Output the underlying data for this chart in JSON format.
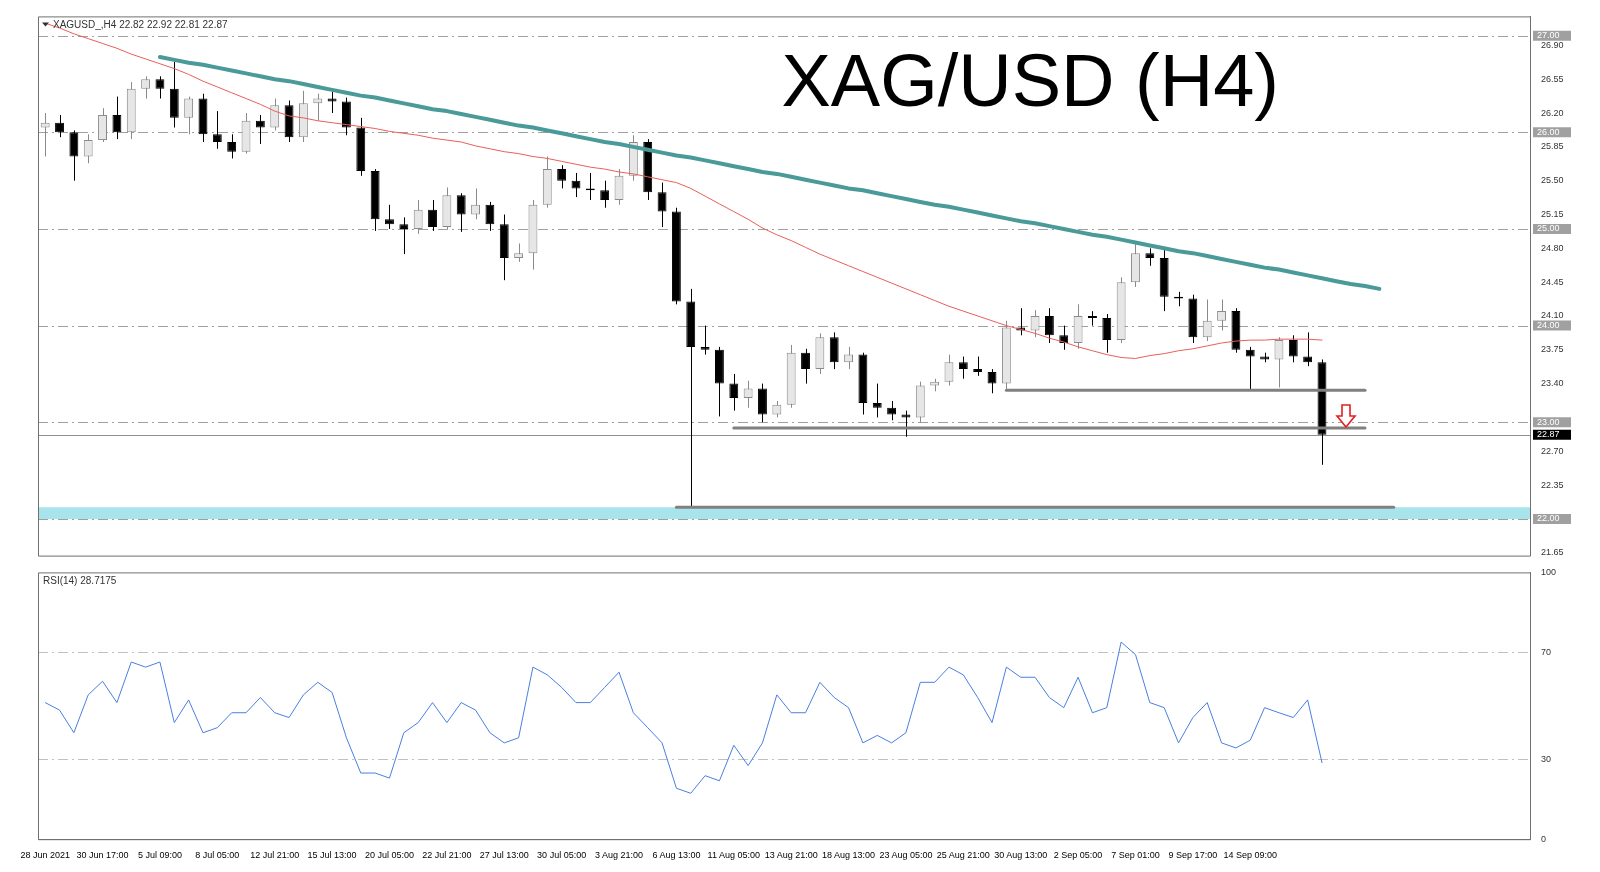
{
  "chart_data": [
    {
      "type": "candlestick",
      "title": "XAG/USD (H4)",
      "subtitle": "XAGUSD_,H4 22.82 22.92 22.81 22.87",
      "categories": [
        null,
        null,
        null,
        null,
        null,
        null,
        null,
        null,
        null,
        null,
        null,
        null,
        null,
        null,
        null,
        null,
        null,
        null,
        null,
        null,
        null,
        null,
        null,
        null,
        null,
        null,
        null,
        null,
        null,
        null,
        null,
        null,
        null,
        null,
        null,
        null,
        null,
        null,
        null,
        null,
        null,
        null,
        null,
        null,
        null,
        null,
        null,
        null,
        null,
        null,
        null,
        null,
        null,
        null,
        null,
        null,
        null,
        null,
        null,
        null,
        null,
        null,
        null,
        null,
        null,
        null,
        null,
        null,
        null,
        null,
        null,
        null,
        null,
        null,
        null,
        null,
        null,
        null,
        null,
        null,
        null,
        null,
        null,
        null,
        null,
        null,
        null,
        null,
        null,
        null,
        null,
        null,
        null,
        null,
        null,
        null,
        null,
        null,
        null,
        null,
        null,
        null,
        null,
        null
      ],
      "ohlc": [
        [
          26.05,
          26.2,
          25.75,
          26.1
        ],
        [
          26.1,
          26.18,
          25.95,
          26.0
        ],
        [
          26.0,
          26.02,
          25.5,
          25.75
        ],
        [
          25.75,
          25.98,
          25.68,
          25.92
        ],
        [
          25.92,
          26.25,
          25.9,
          26.18
        ],
        [
          26.18,
          26.37,
          25.93,
          26.0
        ],
        [
          26.0,
          26.52,
          25.93,
          26.45
        ],
        [
          26.45,
          26.58,
          26.35,
          26.55
        ],
        [
          26.55,
          26.58,
          26.35,
          26.45
        ],
        [
          26.45,
          26.73,
          26.05,
          26.15
        ],
        [
          26.15,
          26.37,
          25.98,
          26.35
        ],
        [
          26.35,
          26.4,
          25.9,
          25.98
        ],
        [
          25.98,
          26.22,
          25.83,
          25.9
        ],
        [
          25.9,
          25.98,
          25.73,
          25.8
        ],
        [
          25.8,
          26.2,
          25.78,
          26.12
        ],
        [
          26.12,
          26.18,
          25.88,
          26.05
        ],
        [
          26.05,
          26.35,
          26.02,
          26.28
        ],
        [
          26.28,
          26.33,
          25.9,
          25.95
        ],
        [
          25.95,
          26.43,
          25.9,
          26.3
        ],
        [
          26.3,
          26.4,
          26.12,
          26.35
        ],
        [
          26.35,
          26.42,
          26.2,
          26.32
        ],
        [
          26.32,
          26.36,
          25.97,
          26.05
        ],
        [
          26.05,
          26.15,
          25.55,
          25.6
        ],
        [
          25.6,
          25.62,
          24.98,
          25.1
        ],
        [
          25.1,
          25.25,
          25.0,
          25.05
        ],
        [
          25.05,
          25.12,
          24.74,
          25.0
        ],
        [
          25.0,
          25.3,
          24.95,
          25.2
        ],
        [
          25.2,
          25.3,
          24.98,
          25.02
        ],
        [
          25.02,
          25.43,
          25.0,
          25.35
        ],
        [
          25.35,
          25.37,
          24.97,
          25.15
        ],
        [
          25.15,
          25.42,
          25.1,
          25.25
        ],
        [
          25.25,
          25.28,
          24.98,
          25.05
        ],
        [
          25.05,
          25.15,
          24.47,
          24.7
        ],
        [
          24.7,
          24.85,
          24.66,
          24.75
        ],
        [
          24.75,
          25.3,
          24.58,
          25.25
        ],
        [
          25.25,
          25.75,
          25.22,
          25.62
        ],
        [
          25.62,
          25.66,
          25.42,
          25.5
        ],
        [
          25.5,
          25.58,
          25.33,
          25.42
        ],
        [
          25.42,
          25.58,
          25.3,
          25.4
        ],
        [
          25.4,
          25.5,
          25.22,
          25.3
        ],
        [
          25.3,
          25.62,
          25.25,
          25.55
        ],
        [
          25.55,
          25.97,
          25.5,
          25.9
        ],
        [
          25.9,
          25.93,
          25.3,
          25.38
        ],
        [
          25.38,
          25.48,
          25.02,
          25.18
        ],
        [
          25.18,
          25.22,
          24.22,
          24.25
        ],
        [
          24.25,
          24.38,
          22.12,
          23.78
        ],
        [
          23.78,
          24.0,
          23.7,
          23.75
        ],
        [
          23.75,
          23.78,
          23.06,
          23.4
        ],
        [
          23.4,
          23.5,
          23.12,
          23.25
        ],
        [
          23.25,
          23.43,
          23.15,
          23.35
        ],
        [
          23.35,
          23.4,
          23.0,
          23.08
        ],
        [
          23.08,
          23.22,
          23.05,
          23.18
        ],
        [
          23.18,
          23.8,
          23.15,
          23.72
        ],
        [
          23.72,
          23.76,
          23.4,
          23.55
        ],
        [
          23.55,
          23.92,
          23.5,
          23.88
        ],
        [
          23.88,
          23.93,
          23.55,
          23.62
        ],
        [
          23.62,
          23.78,
          23.55,
          23.7
        ],
        [
          23.7,
          23.72,
          23.08,
          23.2
        ],
        [
          23.2,
          23.4,
          23.05,
          23.15
        ],
        [
          23.15,
          23.22,
          23.02,
          23.08
        ],
        [
          23.08,
          23.12,
          22.85,
          23.05
        ],
        [
          23.05,
          23.42,
          23.0,
          23.38
        ],
        [
          23.38,
          23.45,
          23.32,
          23.42
        ],
        [
          23.42,
          23.7,
          23.38,
          23.62
        ],
        [
          23.62,
          23.68,
          23.45,
          23.55
        ],
        [
          23.55,
          23.68,
          23.48,
          23.52
        ],
        [
          23.52,
          23.55,
          23.3,
          23.4
        ],
        [
          23.4,
          24.05,
          23.33,
          23.98
        ],
        [
          23.98,
          24.18,
          23.9,
          23.95
        ],
        [
          23.95,
          24.16,
          23.88,
          24.1
        ],
        [
          24.1,
          24.18,
          23.82,
          23.9
        ],
        [
          23.9,
          24.0,
          23.75,
          23.82
        ],
        [
          23.82,
          24.22,
          23.76,
          24.1
        ],
        [
          24.1,
          24.15,
          24.0,
          24.08
        ],
        [
          24.08,
          24.12,
          23.72,
          23.85
        ],
        [
          23.85,
          24.5,
          23.82,
          24.45
        ],
        [
          24.45,
          24.86,
          24.4,
          24.75
        ],
        [
          24.75,
          24.8,
          24.62,
          24.7
        ],
        [
          24.7,
          24.8,
          24.15,
          24.3
        ],
        [
          24.3,
          24.35,
          24.2,
          24.28
        ],
        [
          24.28,
          24.32,
          23.82,
          23.88
        ],
        [
          23.88,
          24.27,
          23.84,
          24.05
        ],
        [
          24.05,
          24.27,
          23.95,
          24.15
        ],
        [
          24.15,
          24.18,
          23.72,
          23.75
        ],
        [
          23.75,
          23.78,
          23.33,
          23.68
        ],
        [
          23.68,
          23.72,
          23.62,
          23.65
        ],
        [
          23.65,
          23.88,
          23.36,
          23.85
        ],
        [
          23.85,
          23.9,
          23.62,
          23.68
        ],
        [
          23.68,
          23.93,
          23.58,
          23.62
        ],
        [
          23.62,
          23.65,
          22.56,
          22.87
        ],
        null,
        null,
        null,
        null,
        null,
        null,
        null,
        null,
        null,
        null,
        null,
        null,
        null,
        null
      ],
      "series": [
        {
          "type": "line",
          "color": "#e8605a",
          "values": [
            27.13,
            27.08,
            27.02,
            26.97,
            26.92,
            26.87,
            26.81,
            26.76,
            26.71,
            26.66,
            26.6,
            26.53,
            26.47,
            26.41,
            26.35,
            26.29,
            26.22,
            26.17,
            26.15,
            26.12,
            26.1,
            26.08,
            26.06,
            26.04,
            26.01,
            25.99,
            25.97,
            25.94,
            25.92,
            25.9,
            25.86,
            25.83,
            25.8,
            25.78,
            25.75,
            25.73,
            25.7,
            25.67,
            25.64,
            25.62,
            25.59,
            25.57,
            25.54,
            25.51,
            25.48,
            25.42,
            25.34,
            25.26,
            25.18,
            25.1,
            25.01,
            24.94,
            24.88,
            24.81,
            24.74,
            24.68,
            24.62,
            24.56,
            24.5,
            24.44,
            24.38,
            24.32,
            24.26,
            24.2,
            24.15,
            24.1,
            24.05,
            24.0,
            23.96,
            23.92,
            23.87,
            23.83,
            23.78,
            23.74,
            23.7,
            23.67,
            23.66,
            23.69,
            23.71,
            23.74,
            23.76,
            23.79,
            23.82,
            23.84,
            23.85,
            23.85,
            23.86,
            23.86,
            23.86,
            23.85,
            null,
            null,
            null,
            null,
            null,
            null,
            null,
            null,
            null,
            null,
            null,
            null,
            null,
            null
          ]
        },
        {
          "type": "line",
          "color": "#4a9a9a",
          "values": [
            null,
            null,
            null,
            null,
            null,
            null,
            null,
            null,
            26.78,
            26.75,
            26.72,
            26.7,
            26.67,
            26.64,
            26.61,
            26.58,
            26.55,
            26.53,
            26.5,
            26.47,
            26.44,
            26.41,
            26.38,
            26.36,
            26.33,
            26.3,
            26.27,
            26.24,
            26.22,
            26.19,
            26.16,
            26.13,
            26.1,
            26.07,
            26.05,
            26.02,
            25.99,
            25.96,
            25.93,
            25.9,
            25.88,
            25.85,
            25.82,
            25.79,
            25.76,
            25.74,
            25.71,
            25.68,
            25.65,
            25.62,
            25.59,
            25.57,
            25.54,
            25.51,
            25.48,
            25.45,
            25.42,
            25.4,
            25.37,
            25.34,
            25.31,
            25.28,
            25.25,
            25.23,
            25.2,
            25.17,
            25.14,
            25.11,
            25.08,
            25.06,
            25.03,
            25.0,
            24.97,
            24.94,
            24.92,
            24.89,
            24.86,
            24.83,
            24.8,
            24.77,
            24.75,
            24.72,
            24.69,
            24.66,
            24.63,
            24.6,
            24.58,
            24.55,
            24.52,
            24.49,
            24.46,
            24.43,
            24.41,
            24.38,
            null,
            null,
            null,
            null,
            null,
            null,
            null,
            null,
            null,
            null
          ]
        },
        {
          "type": "line",
          "color": "#808080",
          "values": [
            null,
            null,
            null,
            null,
            null,
            null,
            null,
            null,
            null,
            null,
            null,
            null,
            null,
            null,
            null,
            null,
            null,
            null,
            null,
            null,
            null,
            null,
            null,
            null,
            null,
            null,
            null,
            null,
            null,
            null,
            null,
            null,
            null,
            null,
            null,
            null,
            null,
            null,
            null,
            null,
            null,
            null,
            null,
            null,
            null,
            null,
            null,
            null,
            null,
            null,
            null,
            null,
            null,
            null,
            null,
            null,
            null,
            null,
            null,
            null,
            null,
            null,
            null,
            null,
            null,
            null,
            null,
            23.33,
            23.33,
            23.33,
            23.33,
            23.33,
            23.33,
            23.33,
            23.33,
            23.33,
            23.33,
            23.33,
            23.33,
            23.33,
            23.33,
            23.33,
            23.33,
            23.33,
            23.33,
            23.33,
            23.33,
            23.33,
            23.33,
            23.33,
            23.33,
            23.33,
            23.33,
            null,
            null,
            null,
            null,
            null,
            null,
            null,
            null,
            null,
            null,
            null
          ]
        },
        {
          "type": "line",
          "color": "#808080",
          "values": [
            null,
            null,
            null,
            null,
            null,
            null,
            null,
            null,
            null,
            null,
            null,
            null,
            null,
            null,
            null,
            null,
            null,
            null,
            null,
            null,
            null,
            null,
            null,
            null,
            null,
            null,
            null,
            null,
            null,
            null,
            null,
            null,
            null,
            null,
            null,
            null,
            null,
            null,
            null,
            null,
            null,
            null,
            null,
            null,
            null,
            null,
            null,
            null,
            22.94,
            22.94,
            22.94,
            22.94,
            22.94,
            22.94,
            22.94,
            22.94,
            22.94,
            22.94,
            22.94,
            22.94,
            22.94,
            22.94,
            22.94,
            22.94,
            22.94,
            22.94,
            22.94,
            22.94,
            22.94,
            22.94,
            22.94,
            22.94,
            22.94,
            22.94,
            22.94,
            22.94,
            22.94,
            22.94,
            22.94,
            22.94,
            22.94,
            22.94,
            22.94,
            22.94,
            22.94,
            22.94,
            22.94,
            22.94,
            22.94,
            22.94,
            22.94,
            22.94,
            22.94,
            null,
            null,
            null,
            null,
            null,
            null,
            null,
            null,
            null,
            null,
            null
          ]
        },
        {
          "type": "line",
          "color": "#808080",
          "values": [
            null,
            null,
            null,
            null,
            null,
            null,
            null,
            null,
            null,
            null,
            null,
            null,
            null,
            null,
            null,
            null,
            null,
            null,
            null,
            null,
            null,
            null,
            null,
            null,
            null,
            null,
            null,
            null,
            null,
            null,
            null,
            null,
            null,
            null,
            null,
            null,
            null,
            null,
            null,
            null,
            null,
            null,
            null,
            null,
            22.12,
            22.12,
            22.12,
            22.12,
            22.12,
            22.12,
            22.12,
            22.12,
            22.12,
            22.12,
            22.12,
            22.12,
            22.12,
            22.12,
            22.12,
            22.12,
            22.12,
            22.12,
            22.12,
            22.12,
            22.12,
            22.12,
            22.12,
            22.12,
            22.12,
            22.12,
            22.12,
            22.12,
            22.12,
            22.12,
            22.12,
            22.12,
            22.12,
            22.12,
            22.12,
            22.12,
            22.12,
            22.12,
            22.12,
            22.12,
            22.12,
            22.12,
            22.12,
            22.12,
            22.12,
            22.12,
            22.12,
            22.12,
            22.12,
            22.12,
            22.12,
            null,
            null,
            null,
            null,
            null,
            null,
            null,
            null,
            null
          ]
        }
      ],
      "ylim": [
        21.62,
        27.2
      ],
      "yticks": [
        {
          "value": 26.9,
          "label": "26.90"
        },
        {
          "value": 26.55,
          "label": "26.55"
        },
        {
          "value": 26.2,
          "label": "26.20"
        },
        {
          "value": 25.85,
          "label": "25.85"
        },
        {
          "value": 25.5,
          "label": "25.50"
        },
        {
          "value": 25.15,
          "label": "25.15"
        },
        {
          "value": 24.8,
          "label": "24.80"
        },
        {
          "value": 24.45,
          "label": "24.45"
        },
        {
          "value": 24.1,
          "label": "24.10"
        },
        {
          "value": 23.75,
          "label": "23.75"
        },
        {
          "value": 23.4,
          "label": "23.40"
        },
        {
          "value": 22.7,
          "label": "22.70"
        },
        {
          "value": 22.35,
          "label": "22.35"
        },
        {
          "value": 21.65,
          "label": "21.65"
        }
      ],
      "ref_lines": [
        {
          "axis": "y",
          "value": 27,
          "label": "27.00",
          "color": "#a0a0a0",
          "line_style": "dashed"
        },
        {
          "axis": "y",
          "value": 26,
          "label": "26.00",
          "color": "#a0a0a0",
          "line_style": "dashed"
        },
        {
          "axis": "y",
          "value": 25,
          "label": "25.00",
          "color": "#a0a0a0",
          "line_style": "dashed"
        },
        {
          "axis": "y",
          "value": 24,
          "label": "24.00",
          "color": "#a0a0a0",
          "line_style": "dashed"
        },
        {
          "axis": "y",
          "value": 23,
          "label": "23.00",
          "color": "#a0a0a0",
          "line_style": "dashed"
        },
        {
          "axis": "y",
          "value": 22,
          "label": "22.00",
          "color": "#a0a0a0",
          "line_style": "dashed"
        },
        {
          "axis": "y",
          "value": 22.87,
          "label": "22.87",
          "color": "#909090",
          "line_style": "solid"
        }
      ],
      "bands": [
        {
          "axis": "y",
          "from": 22.0,
          "to": 22.12,
          "color": "#a8e4ec"
        }
      ],
      "tick_labels": "y",
      "grid": false,
      "legend": false
    },
    {
      "type": "line",
      "title": "RSI(14) 28.7175",
      "categories": [
        "28 Jun 2021",
        null,
        null,
        null,
        "30 Jun 17:00",
        null,
        null,
        null,
        "5 Jul 09:00",
        null,
        null,
        null,
        "8 Jul 05:00",
        null,
        null,
        null,
        "12 Jul 21:00",
        null,
        null,
        null,
        "15 Jul 13:00",
        null,
        null,
        null,
        "20 Jul 05:00",
        null,
        null,
        null,
        "22 Jul 21:00",
        null,
        null,
        null,
        "27 Jul 13:00",
        null,
        null,
        null,
        "30 Jul 05:00",
        null,
        null,
        null,
        "3 Aug 21:00",
        null,
        null,
        null,
        "6 Aug 13:00",
        null,
        null,
        null,
        "11 Aug 05:00",
        null,
        null,
        null,
        "13 Aug 21:00",
        null,
        null,
        null,
        "18 Aug 13:00",
        null,
        null,
        null,
        "23 Aug 05:00",
        null,
        null,
        null,
        "25 Aug 21:00",
        null,
        null,
        null,
        "30 Aug 13:00",
        null,
        null,
        null,
        "2 Sep 05:00",
        null,
        null,
        null,
        "7 Sep 01:00",
        null,
        null,
        null,
        "9 Sep 17:00",
        null,
        null,
        null,
        "14 Sep 09:00",
        null,
        null,
        null,
        null,
        null,
        null,
        null,
        null,
        null,
        null,
        null,
        null,
        null,
        null,
        null,
        null,
        null,
        null,
        null
      ],
      "series": [
        {
          "color": "#4a7fe0",
          "values": [
            51.2,
            48.4,
            39.9,
            54.1,
            59.2,
            51.2,
            66.4,
            64.5,
            66.4,
            43.7,
            52.2,
            39.9,
            41.8,
            47.4,
            47.4,
            53.1,
            47.4,
            45.6,
            54.1,
            58.8,
            55.0,
            38.0,
            24.8,
            24.8,
            22.9,
            39.9,
            43.7,
            51.2,
            43.7,
            51.2,
            48.4,
            39.9,
            36.1,
            38.0,
            64.5,
            61.6,
            56.9,
            51.2,
            51.2,
            56.9,
            62.6,
            47.4,
            41.8,
            36.1,
            19.1,
            17.2,
            23.8,
            21.9,
            35.2,
            27.6,
            36.1,
            54.1,
            47.4,
            47.4,
            58.8,
            53.1,
            49.3,
            36.1,
            38.9,
            36.1,
            39.9,
            58.8,
            58.8,
            64.5,
            61.6,
            53.1,
            43.7,
            64.5,
            60.7,
            60.7,
            53.1,
            49.3,
            60.7,
            47.4,
            49.3,
            73.9,
            69.2,
            51.2,
            49.3,
            36.1,
            45.6,
            51.2,
            36.1,
            34.2,
            37.1,
            49.3,
            47.4,
            45.6,
            52.2,
            28.7,
            null,
            null,
            null,
            null,
            null,
            null,
            null,
            null,
            null,
            null,
            null,
            null,
            null,
            null
          ]
        }
      ],
      "ylim": [
        0,
        100
      ],
      "yticks": [
        0,
        30,
        70,
        100
      ],
      "ref_lines": [
        {
          "axis": "y",
          "value": 70,
          "color": "#c0c0c0",
          "line_style": "dashed"
        },
        {
          "axis": "y",
          "value": 30,
          "color": "#c0c0c0",
          "line_style": "dashed"
        }
      ],
      "grid": false,
      "legend": false
    }
  ]
}
